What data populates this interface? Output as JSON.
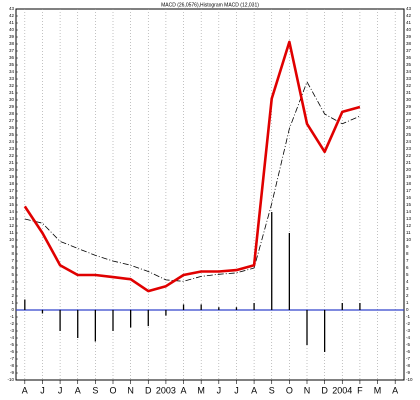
{
  "chart_data": {
    "type": "line",
    "title": "MACD (26,0576),Histogram MACD (12,031)",
    "categories": [
      "A",
      "J",
      "J",
      "A",
      "S",
      "O",
      "N",
      "D",
      "2003",
      "A",
      "M",
      "J",
      "J",
      "A",
      "S",
      "O",
      "N",
      "D",
      "2004",
      "F",
      "M",
      "A"
    ],
    "series": [
      {
        "type": "bar",
        "color": "#000000",
        "values": [
          1.5,
          -0.5,
          -3,
          -4,
          -4.5,
          -3,
          -2.5,
          -2.3,
          -0.8,
          0.8,
          0.8,
          0.4,
          0.4,
          1,
          14,
          11,
          -5,
          -6,
          1,
          1,
          null,
          null
        ]
      },
      {
        "type": "line",
        "color": "#000000",
        "dashed": true,
        "values": [
          13,
          12.4,
          9.8,
          8.8,
          7.8,
          7,
          6.4,
          5.5,
          4.3,
          4.1,
          4.8,
          5.1,
          5.3,
          6,
          15.2,
          25.9,
          32.6,
          28,
          26.6,
          27.7,
          null,
          null
        ]
      },
      {
        "type": "line",
        "color": "#e00000",
        "dashed": false,
        "values": [
          14.8,
          11,
          6.4,
          5,
          5,
          4.7,
          4.4,
          2.7,
          3.4,
          5,
          5.5,
          5.5,
          5.7,
          6.4,
          30.2,
          38.3,
          26.6,
          22.6,
          28.3,
          29,
          null,
          null
        ]
      }
    ],
    "zero_line_color": "#3344cc",
    "ylim": [
      -10,
      43
    ],
    "yticks": [
      -10,
      -9,
      -8,
      -7,
      -6,
      -5,
      -4,
      -3,
      -2,
      -1,
      0,
      1,
      2,
      3,
      4,
      5,
      6,
      7,
      8,
      9,
      10,
      11,
      12,
      13,
      14,
      15,
      16,
      17,
      18,
      19,
      20,
      21,
      22,
      23,
      24,
      25,
      26,
      27,
      28,
      29,
      30,
      31,
      32,
      33,
      34,
      35,
      36,
      37,
      38,
      39,
      40,
      41,
      42,
      43
    ],
    "grid": true
  }
}
